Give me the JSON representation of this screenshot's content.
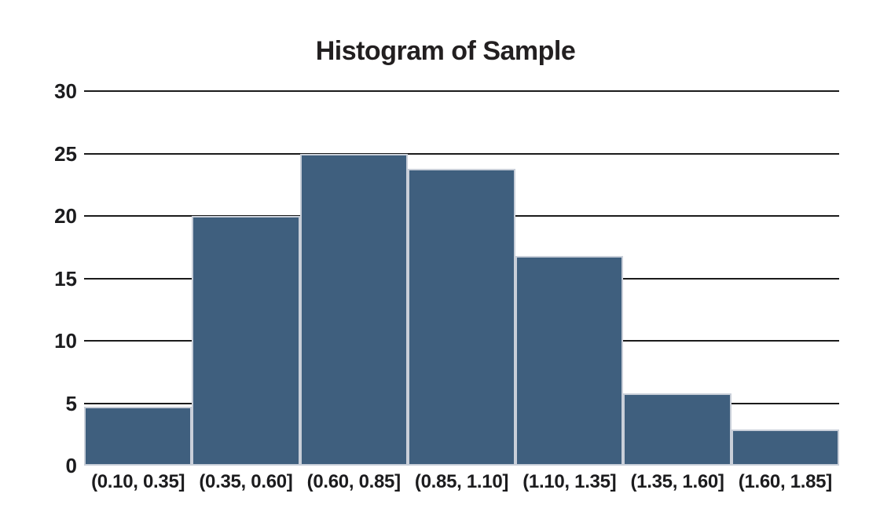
{
  "title": "Histogram of Sample",
  "chart_data": {
    "type": "bar",
    "subtype": "histogram",
    "title": "Histogram of Sample",
    "categories": [
      "(0.10, 0.35]",
      "(0.35, 0.60]",
      "(0.60, 0.85]",
      "(0.85, 1.10]",
      "(1.10, 1.35]",
      "(1.35, 1.60]",
      "(1.60, 1.85]"
    ],
    "values": [
      4.7,
      20,
      25,
      23.8,
      16.8,
      5.8,
      2.9
    ],
    "xlabel": "",
    "ylabel": "",
    "ylim": [
      0,
      30
    ],
    "yticks": [
      0,
      5,
      10,
      15,
      20,
      25,
      30
    ],
    "grid": "horizontal",
    "gridline_at_zero": false,
    "legend": "none",
    "bar_gap": 0,
    "colors": {
      "bar_fill": "#3f5f7e",
      "bar_stroke": "#c9cfd9",
      "gridline": "#1b1b1b",
      "text": "#1c1c1e",
      "title_text": "#221f20",
      "background": "#ffffff"
    }
  }
}
